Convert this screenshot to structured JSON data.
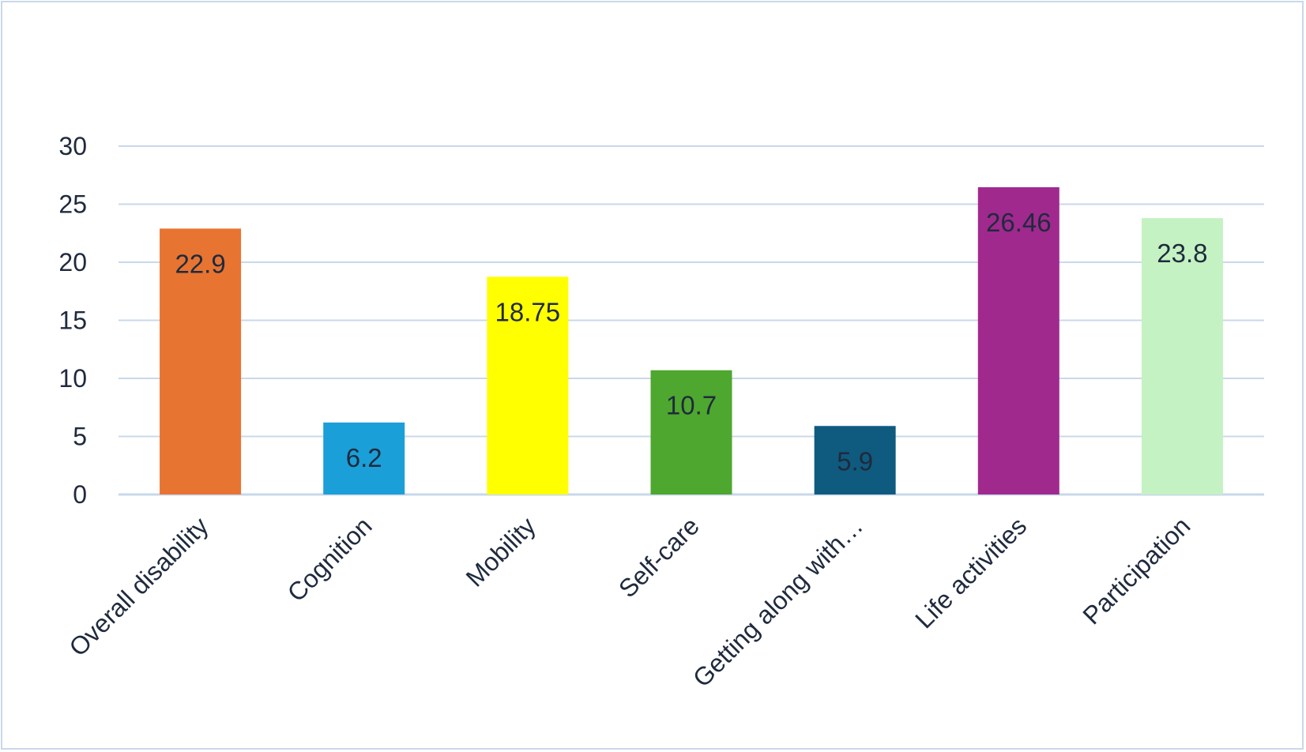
{
  "chart_data": {
    "type": "bar",
    "title": "",
    "xlabel": "",
    "ylabel": "",
    "categories": [
      "Overall disability",
      "Cognition",
      "Mobility",
      "Self-care",
      "Getting along with…",
      "Life activities",
      "Participation"
    ],
    "values": [
      22.9,
      6.2,
      18.75,
      10.7,
      5.9,
      26.46,
      23.8
    ],
    "data_labels": [
      "22.9",
      "6.2",
      "18.75",
      "10.7",
      "5.9",
      "26.46",
      "23.8"
    ],
    "colors": [
      "#e87432",
      "#1a9fd8",
      "#ffff00",
      "#4ea72e",
      "#0f5a7f",
      "#a0298e",
      "#c4f2c2"
    ],
    "ylim": [
      0,
      30
    ],
    "yticks": [
      "0",
      "5",
      "10",
      "15",
      "20",
      "25",
      "30"
    ],
    "grid": true,
    "gridline_color": "#c9d8ea",
    "legend": "none"
  }
}
